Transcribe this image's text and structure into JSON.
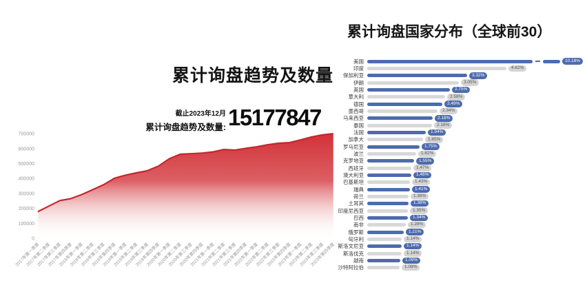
{
  "colors": {
    "red_line": "#c4262d",
    "red_fill_top": "#d23238",
    "red_fill_bottom": "#ffffff",
    "blue_bar": "#4d6bad",
    "gray_bar": "#d8d8d8",
    "gray_badge_bg": "#d4d4d4",
    "gray_badge_text": "#555555",
    "axis_text": "#999999"
  },
  "chart_data": [
    {
      "type": "area",
      "title": "累计询盘趋势及数量",
      "annotation_asof": "截止2023年12月",
      "annotation_label": "累计询盘趋势及数量:",
      "annotation_value": "15177847",
      "xlabel": "",
      "ylabel": "",
      "ylim": [
        0,
        700000
      ],
      "yticks": [
        0,
        100000,
        200000,
        300000,
        400000,
        500000,
        600000,
        700000
      ],
      "grid": false,
      "legend": false,
      "categories": [
        "2017年第一季度",
        "2017年第二季度",
        "2017年第三季度",
        "2017年第四季度",
        "2018年第一季度",
        "2018年第二季度",
        "2018年第三季度",
        "2018年第四季度",
        "2019年第一季度",
        "2019年第二季度",
        "2019年第三季度",
        "2019年第四季度",
        "2020年第一季度",
        "2020年第二季度",
        "2020年第三季度",
        "2020年第四季度",
        "2021年第一季度",
        "2021年第二季度",
        "2021年第三季度",
        "2021年第四季度",
        "2022年第一季度",
        "2022年第二季度",
        "2022年第三季度",
        "2022年第四季度",
        "2023年第一季度",
        "2023年第二季度",
        "2023年第三季度",
        "2023年第四季度"
      ],
      "values": [
        178000,
        215000,
        252000,
        265000,
        292000,
        325000,
        358000,
        402000,
        422000,
        438000,
        452000,
        482000,
        532000,
        562000,
        566000,
        570000,
        578000,
        594000,
        590000,
        602000,
        612000,
        626000,
        636000,
        640000,
        658000,
        678000,
        692000,
        700000
      ]
    },
    {
      "type": "bar",
      "orientation": "horizontal",
      "title": "累计询盘国家分布（全球前30）",
      "grid": false,
      "legend": false,
      "broken_bar_index": 0,
      "categories": [
        "美国",
        "印度",
        "保加利亚",
        "伊朗",
        "英国",
        "意大利",
        "德国",
        "墨西哥",
        "马来西亚",
        "泰国",
        "法国",
        "加拿大",
        "罗马尼亚",
        "波兰",
        "克罗地亚",
        "西班牙",
        "澳大利亚",
        "巴基斯坦",
        "瑞典",
        "荷兰",
        "土耳其",
        "印度尼西亚",
        "巴西",
        "南非",
        "俄罗斯",
        "匈牙利",
        "斯洛文尼亚",
        "斯洛伐克",
        "越南",
        "沙特阿拉伯"
      ],
      "values": [
        10.18,
        4.62,
        3.32,
        3.05,
        2.75,
        2.58,
        2.49,
        2.34,
        2.18,
        2.16,
        1.94,
        1.85,
        1.75,
        1.62,
        1.55,
        1.47,
        1.46,
        1.43,
        1.41,
        1.38,
        1.38,
        1.35,
        1.34,
        1.28,
        1.21,
        1.14,
        1.14,
        1.14,
        1.09,
        1.08
      ],
      "labels": [
        "10.18%",
        "4.62%",
        "3.32%",
        "3.05%",
        "2.75%",
        "2.58%",
        "2.49%",
        "2.34%",
        "2.18%",
        "2.16%",
        "1.94%",
        "1.85%",
        "1.75%",
        "1.62%",
        "1.55%",
        "1.47%",
        "1.46%",
        "1.43%",
        "1.41%",
        "1.38%",
        "1.38%",
        "1.35%",
        "1.34%",
        "1.28%",
        "1.21%",
        "1.14%",
        "1.14%",
        "1.14%",
        "1.09%",
        "1.08%"
      ]
    }
  ]
}
